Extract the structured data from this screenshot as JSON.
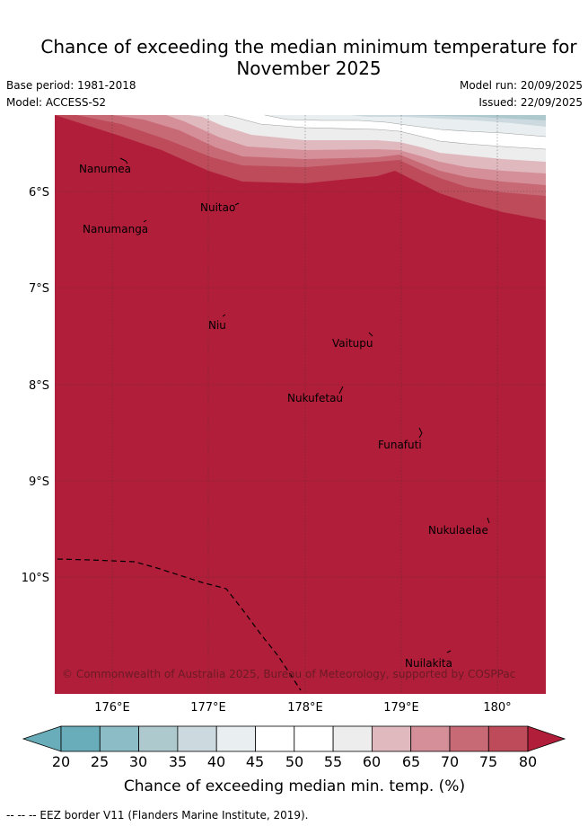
{
  "header": {
    "title_line1": "Chance of exceeding the median minimum temperature for",
    "title_line2": "November 2025",
    "base_period": "Base period: 1981-2018",
    "model": "Model: ACCESS-S2",
    "model_run": "Model run: 20/09/2025",
    "issued": "Issued: 22/09/2025"
  },
  "map": {
    "lat_labels": [
      "6°S",
      "7°S",
      "8°S",
      "9°S",
      "10°S"
    ],
    "lon_labels": [
      "176°E",
      "177°E",
      "178°E",
      "179°E",
      "180°"
    ],
    "places": [
      "Nanumea",
      "Nuitao",
      "Nanumanga",
      "Niu",
      "Vaitupu",
      "Nukufetau",
      "Funafuti",
      "Nukulaelae",
      "Nuilakita"
    ],
    "credit": "© Commonwealth of Australia 2025, Bureau of Meteorology, supported by COSPPac",
    "colors": {
      "c20": "#68adb9",
      "c25": "#8cbcc6",
      "c30": "#adc9ce",
      "c35": "#ccd9de",
      "c40": "#e9eff1",
      "c45": "#ffffff",
      "c50": "#ffffff",
      "c55": "#ededee",
      "c60": "#e0b9bf",
      "c65": "#d58f99",
      "c70": "#c86a76",
      "c75": "#be4b5a",
      "c80": "#b11e3a"
    }
  },
  "colorbar": {
    "ticks": [
      "20",
      "25",
      "30",
      "35",
      "40",
      "45",
      "50",
      "55",
      "60",
      "65",
      "70",
      "75",
      "80"
    ],
    "label": "Chance of exceeding median min. temp. (%)"
  },
  "footer": {
    "eez_legend": "--  --  -- EEZ border V11 (Flanders Marine Institute, 2019)."
  }
}
